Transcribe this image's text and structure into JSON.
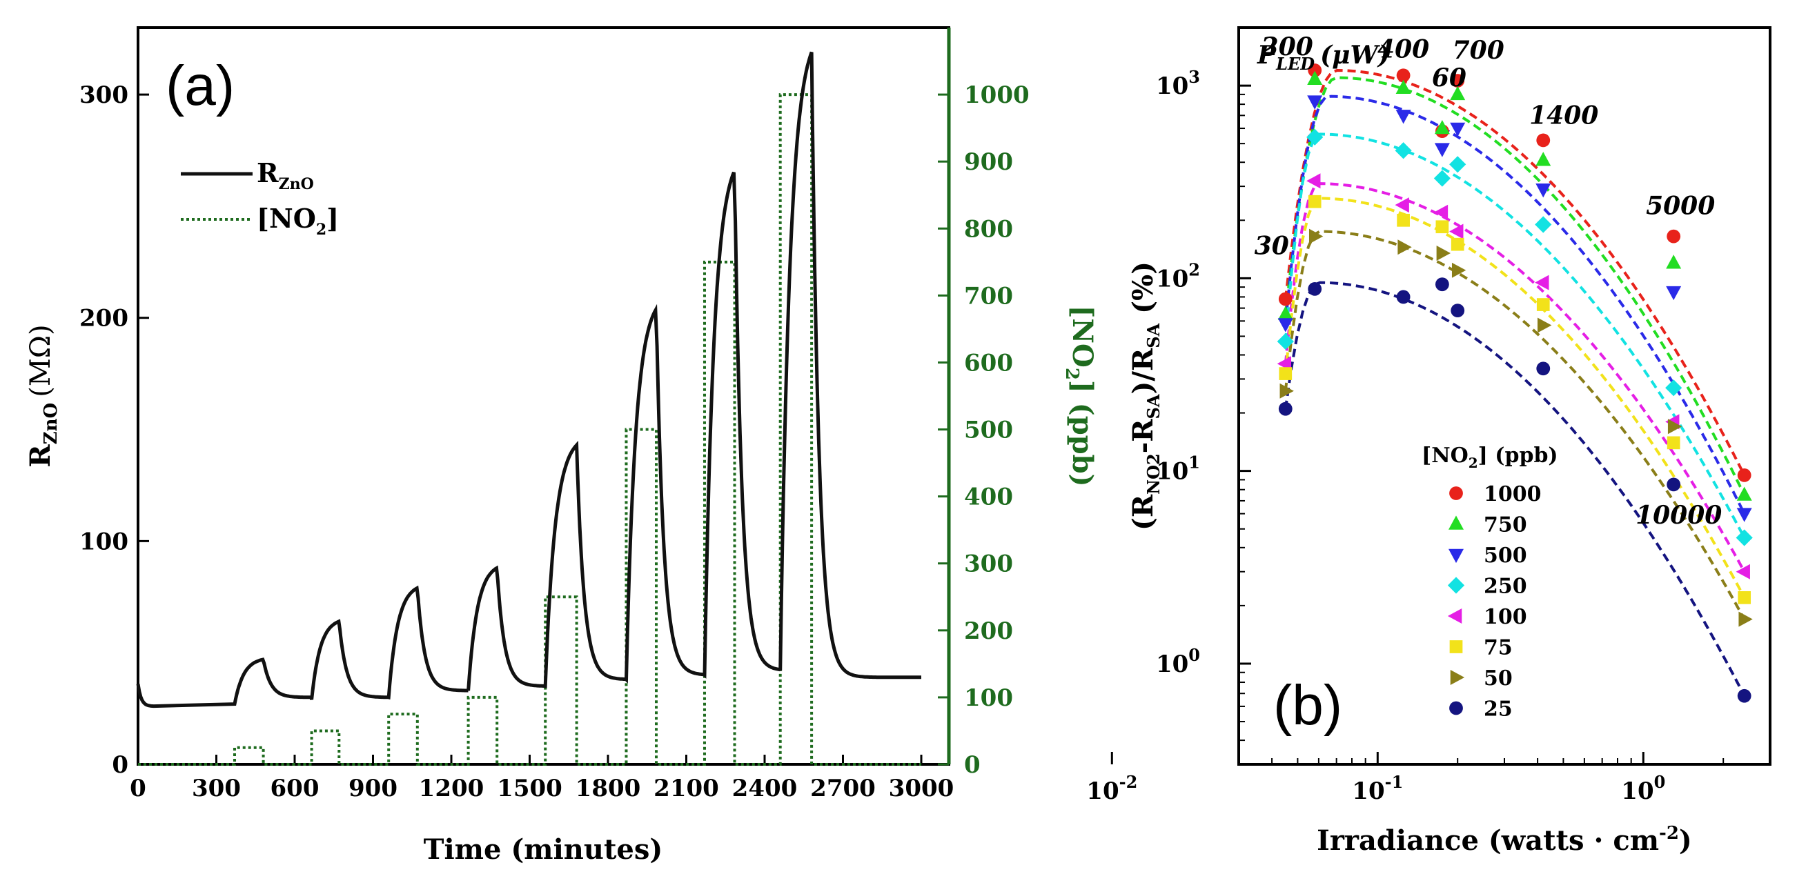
{
  "chart_data": [
    {
      "panel": "(a)",
      "type": "line",
      "xlabel": "Time (minutes)",
      "ylabel": "R",
      "ylabel_sub": "ZnO",
      "ylabel_unit": "(MΩ)",
      "y2label_pre": "[NO",
      "y2label_sub": "2",
      "y2label_post": "] (ppb)",
      "xlim": [
        0,
        3000
      ],
      "ylim": [
        0,
        330
      ],
      "y2lim": [
        0,
        1100
      ],
      "x_ticks": [
        0,
        300,
        600,
        900,
        1200,
        1500,
        1800,
        2100,
        2400,
        2700,
        3000
      ],
      "y_ticks": [
        0,
        100,
        200,
        300
      ],
      "y2_ticks": [
        0,
        100,
        200,
        300,
        400,
        500,
        600,
        700,
        800,
        900,
        1000
      ],
      "legend": [
        {
          "label": "R",
          "sub": "ZnO",
          "style": "solid"
        },
        {
          "label": "[NO",
          "sub": "2",
          "post": "]",
          "style": "dotted"
        }
      ],
      "colors": {
        "resistance": "#111111",
        "no2": "#1e6b1e"
      },
      "pulses": [
        {
          "start": 370,
          "end": 480,
          "ppb": 25,
          "r_start": 27,
          "r_peak": 47,
          "r_recover": 30
        },
        {
          "start": 665,
          "end": 770,
          "ppb": 50,
          "r_start": 29,
          "r_peak": 64,
          "r_recover": 30
        },
        {
          "start": 960,
          "end": 1070,
          "ppb": 75,
          "r_start": 30,
          "r_peak": 79,
          "r_recover": 33
        },
        {
          "start": 1265,
          "end": 1375,
          "ppb": 100,
          "r_start": 33,
          "r_peak": 88,
          "r_recover": 35
        },
        {
          "start": 1560,
          "end": 1680,
          "ppb": 250,
          "r_start": 35,
          "r_peak": 143,
          "r_recover": 38
        },
        {
          "start": 1870,
          "end": 1985,
          "ppb": 500,
          "r_start": 38,
          "r_peak": 204,
          "r_recover": 40
        },
        {
          "start": 2170,
          "end": 2285,
          "ppb": 750,
          "r_start": 40,
          "r_peak": 266,
          "r_recover": 42
        },
        {
          "start": 2460,
          "end": 2580,
          "ppb": 1000,
          "r_start": 42,
          "r_peak": 319,
          "r_recover": 39
        }
      ],
      "baseline_start": 26,
      "end_value": 39
    },
    {
      "panel": "(b)",
      "type": "scatter",
      "xscale": "log",
      "yscale": "log",
      "xlabel": "Irradiance (watts · cm",
      "xlabel_sup": "-2",
      "xlabel_post": ")",
      "ylabel_parts": [
        "(R",
        "NO2",
        "-R",
        "SA",
        ")/R",
        "SA",
        " (%)"
      ],
      "xlim": [
        0.03,
        3
      ],
      "ylim": [
        0.3,
        2000
      ],
      "x_ticks": [
        {
          "base": "10",
          "exp": "-2",
          "value": 0.01
        },
        {
          "base": "10",
          "exp": "-1",
          "value": 0.1
        },
        {
          "base": "10",
          "exp": "0",
          "value": 1
        }
      ],
      "y_ticks": [
        {
          "base": "10",
          "exp": "0",
          "value": 1
        },
        {
          "base": "10",
          "exp": "1",
          "value": 10
        },
        {
          "base": "10",
          "exp": "2",
          "value": 100
        },
        {
          "base": "10",
          "exp": "3",
          "value": 1000
        }
      ],
      "x": [
        0.045,
        0.175,
        0.058,
        0.125,
        0.2,
        0.42,
        1.3,
        2.4
      ],
      "power_title": "P",
      "power_title_sub": "LED",
      "power_title_unit": "(μW)",
      "power_labels": [
        "30",
        "60",
        "200",
        "400",
        "700",
        "1400",
        "5000",
        "10000"
      ],
      "legend_title": "[NO",
      "legend_title_sub": "2",
      "legend_title_post": "] (ppb)",
      "series": [
        {
          "name": "1000",
          "color": "#e8221b",
          "marker": "circle",
          "values": [
            78,
            580,
            1200,
            1130,
            1060,
            520,
            165,
            9.5
          ]
        },
        {
          "name": "750",
          "color": "#22dd22",
          "marker": "triangle-up",
          "values": [
            65,
            600,
            1080,
            970,
            900,
            410,
            120,
            7.5
          ]
        },
        {
          "name": "500",
          "color": "#2a2ae8",
          "marker": "triangle-down",
          "values": [
            58,
            470,
            830,
            700,
            600,
            290,
            85,
            6
          ]
        },
        {
          "name": "250",
          "color": "#12e2e2",
          "marker": "diamond",
          "values": [
            47,
            330,
            540,
            460,
            390,
            190,
            27,
            4.5
          ]
        },
        {
          "name": "100",
          "color": "#e51ee5",
          "marker": "triangle-left",
          "values": [
            36,
            220,
            320,
            240,
            175,
            95,
            18,
            3
          ]
        },
        {
          "name": "75",
          "color": "#f2e21a",
          "marker": "square",
          "values": [
            32,
            185,
            250,
            200,
            150,
            73,
            14,
            2.2
          ]
        },
        {
          "name": "50",
          "color": "#8a7e18",
          "marker": "triangle-right",
          "values": [
            26,
            135,
            165,
            145,
            110,
            57,
            17,
            1.7
          ]
        },
        {
          "name": "25",
          "color": "#141480",
          "marker": "circle",
          "values": [
            21,
            93,
            88,
            80,
            68,
            34,
            8.5,
            0.68
          ]
        }
      ],
      "fit_peak_x": [
        0.07,
        0.07,
        0.065,
        0.06,
        0.06,
        0.06,
        0.06,
        0.06
      ],
      "fit_peak_y": [
        1200,
        1100,
        880,
        560,
        310,
        260,
        175,
        95
      ]
    }
  ]
}
